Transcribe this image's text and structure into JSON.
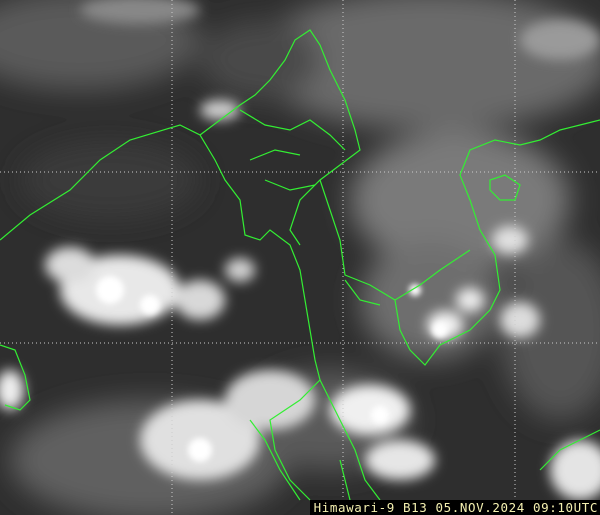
{
  "image": {
    "caption": "Himawari-9 B13 05.NOV.2024 09:10UTC",
    "border_color": "#33ee33",
    "grid_color": "#cccccc",
    "caption_text_color": "#f4f0b0",
    "caption_background": "#000000"
  }
}
